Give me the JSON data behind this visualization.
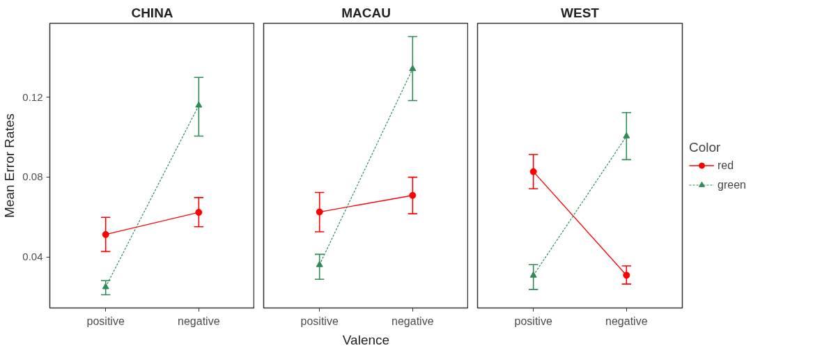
{
  "chart_data": [
    {
      "type": "line",
      "title": "CHINA",
      "ylabel": "Mean Error Rates",
      "categories": [
        "positive",
        "negative"
      ],
      "ylim": [
        0.0144,
        0.157
      ],
      "yticks": [
        0.04,
        0.08,
        0.12
      ],
      "grid": false,
      "series": [
        {
          "color": "#ff0000",
          "marker": "circle",
          "line_style": "solid",
          "values": [
            0.0512,
            0.0623
          ],
          "errors": [
            [
              0.0427,
              0.0598
            ],
            [
              0.0551,
              0.0697
            ]
          ]
        },
        {
          "color": "#2e8b57",
          "marker": "triangle",
          "line_style": "dashed",
          "values": [
            0.0249,
            0.1159
          ],
          "errors": [
            [
              0.021,
              0.0281
            ],
            [
              0.1005,
              0.1299
            ]
          ]
        }
      ]
    },
    {
      "type": "line",
      "title": "MACAU",
      "xlabel": "Valence",
      "categories": [
        "positive",
        "negative"
      ],
      "ylim": [
        0.0144,
        0.157
      ],
      "yticks": [
        0.04,
        0.08,
        0.12
      ],
      "tick_labels": "x",
      "grid": false,
      "series": [
        {
          "color": "#ff0000",
          "marker": "circle",
          "line_style": "solid",
          "values": [
            0.0625,
            0.0708
          ],
          "errors": [
            [
              0.0526,
              0.0723
            ],
            [
              0.0616,
              0.0799
            ]
          ]
        },
        {
          "color": "#2e8b57",
          "marker": "triangle",
          "line_style": "dashed",
          "values": [
            0.036,
            0.1342
          ],
          "errors": [
            [
              0.0288,
              0.0413
            ],
            [
              0.1183,
              0.1504
            ]
          ]
        }
      ]
    },
    {
      "type": "line",
      "title": "WEST",
      "categories": [
        "positive",
        "negative"
      ],
      "ylim": [
        0.0144,
        0.157
      ],
      "yticks": [
        0.04,
        0.08,
        0.12
      ],
      "tick_labels": "x",
      "grid": false,
      "legend": "right",
      "legend_title": "Color",
      "series": [
        {
          "name": "red",
          "color": "#ff0000",
          "marker": "circle",
          "line_style": "solid",
          "values": [
            0.0827,
            0.0308
          ],
          "errors": [
            [
              0.0741,
              0.0913
            ],
            [
              0.0264,
              0.0355
            ]
          ]
        },
        {
          "name": "green",
          "color": "#2e8b57",
          "marker": "triangle",
          "line_style": "dashed",
          "values": [
            0.0307,
            0.1005
          ],
          "errors": [
            [
              0.0237,
              0.0361
            ],
            [
              0.0887,
              0.1123
            ]
          ]
        }
      ]
    }
  ]
}
